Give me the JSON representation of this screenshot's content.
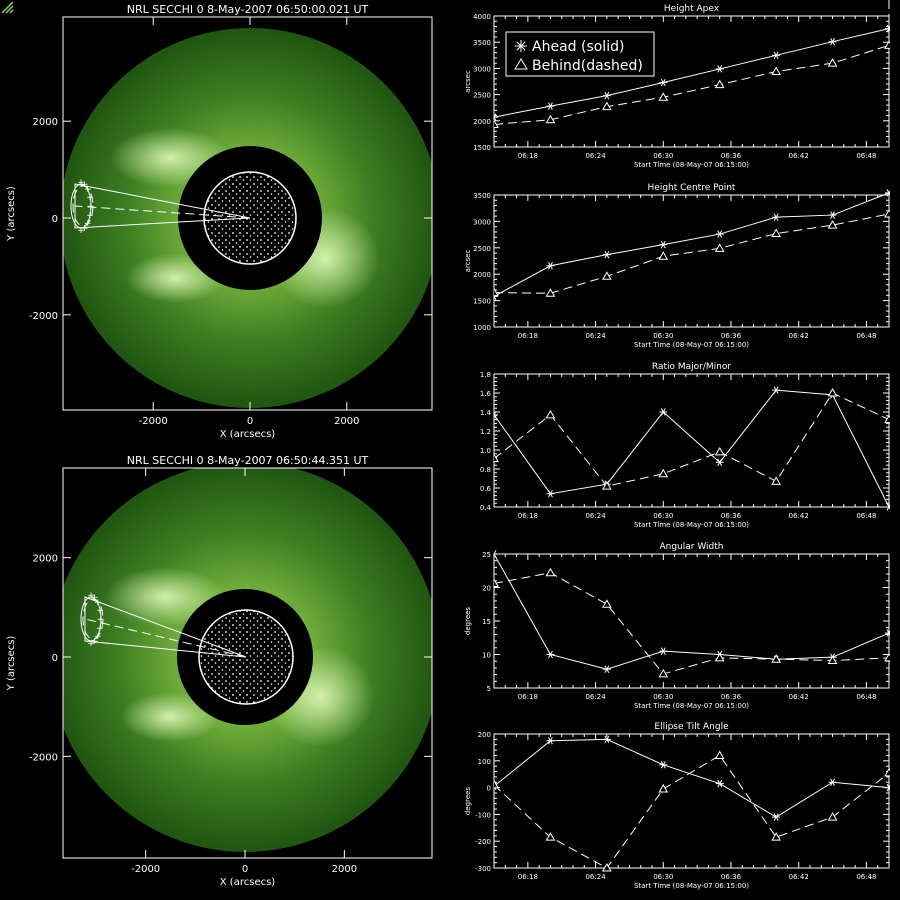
{
  "images": [
    {
      "title": "NRL SECCHI 0  8-May-2007 06:50:00.021 UT",
      "xlabel": "X (arcsecs)",
      "ylabel": "Y (arcsecs)",
      "xticks": [
        -2000,
        0,
        2000
      ],
      "yticks": [
        2000,
        0,
        -2000
      ]
    },
    {
      "title": "NRL SECCHI 0  8-May-2007 06:50:44.351 UT",
      "xlabel": "X (arcsecs)",
      "ylabel": "Y (arcsecs)",
      "xticks": [
        -2000,
        0,
        2000
      ],
      "yticks": [
        2000,
        0,
        -2000
      ]
    }
  ],
  "legend": {
    "ahead": "Ahead (solid)",
    "behind": "Behind(dashed)"
  },
  "colors": {
    "corona_inner": "#6fae3a",
    "corona_mid": "#3d7e22",
    "corona_outer": "#1f5510",
    "background": "#000000",
    "lines": "#ffffff"
  },
  "chart_data": [
    {
      "type": "line",
      "title": "Height Apex",
      "xlabel": "Start Time (08-May-07 06:15:00)",
      "ylabel": "arcsec",
      "x": [
        "06:15",
        "06:20",
        "06:25",
        "06:30",
        "06:35",
        "06:40",
        "06:45",
        "06:50"
      ],
      "xticks": [
        "06:18",
        "06:24",
        "06:30",
        "06:36",
        "06:42",
        "06:48"
      ],
      "yticks": [
        1500,
        2000,
        2500,
        3000,
        3500,
        4000
      ],
      "ylim": [
        1500,
        4000
      ],
      "series": [
        {
          "name": "Ahead (solid)",
          "values": [
            2070,
            2280,
            2480,
            2730,
            2990,
            3250,
            3510,
            3760
          ]
        },
        {
          "name": "Behind(dashed)",
          "values": [
            1930,
            2020,
            2270,
            2450,
            2690,
            2940,
            3100,
            3440
          ]
        }
      ]
    },
    {
      "type": "line",
      "title": "Height Centre Point",
      "xlabel": "Start Time (08-May-07 06:15:00)",
      "ylabel": "arcsec",
      "x": [
        "06:15",
        "06:20",
        "06:25",
        "06:30",
        "06:35",
        "06:40",
        "06:45",
        "06:50"
      ],
      "xticks": [
        "06:18",
        "06:24",
        "06:30",
        "06:36",
        "06:42",
        "06:48"
      ],
      "yticks": [
        1000,
        1500,
        2000,
        2500,
        3000,
        3500
      ],
      "ylim": [
        1000,
        3500
      ],
      "series": [
        {
          "name": "Ahead (solid)",
          "values": [
            1580,
            2160,
            2370,
            2560,
            2760,
            3080,
            3120,
            3540
          ]
        },
        {
          "name": "Behind(dashed)",
          "values": [
            1650,
            1640,
            1960,
            2340,
            2490,
            2770,
            2930,
            3140
          ]
        }
      ]
    },
    {
      "type": "line",
      "title": "Ratio Major/Minor",
      "xlabel": "Start Time (08-May-07 06:15:00)",
      "ylabel": "",
      "x": [
        "06:15",
        "06:20",
        "06:25",
        "06:30",
        "06:35",
        "06:40",
        "06:45",
        "06:50"
      ],
      "xticks": [
        "06:18",
        "06:24",
        "06:30",
        "06:36",
        "06:42",
        "06:48"
      ],
      "yticks": [
        0.4,
        0.6,
        0.8,
        1.0,
        1.2,
        1.4,
        1.6,
        1.8
      ],
      "ylim": [
        0.4,
        1.8
      ],
      "series": [
        {
          "name": "Ahead (solid)",
          "values": [
            1.37,
            0.54,
            0.64,
            1.4,
            0.87,
            1.63,
            1.58,
            0.4
          ]
        },
        {
          "name": "Behind(dashed)",
          "values": [
            0.91,
            1.37,
            0.62,
            0.75,
            0.98,
            0.67,
            1.6,
            1.32
          ]
        }
      ]
    },
    {
      "type": "line",
      "title": "Angular Width",
      "xlabel": "Start Time (08-May-07 06:15:00)",
      "ylabel": "degrees",
      "x": [
        "06:15",
        "06:20",
        "06:25",
        "06:30",
        "06:35",
        "06:40",
        "06:45",
        "06:50"
      ],
      "xticks": [
        "06:18",
        "06:24",
        "06:30",
        "06:36",
        "06:42",
        "06:48"
      ],
      "yticks": [
        5,
        10,
        15,
        20,
        25
      ],
      "ylim": [
        5,
        25
      ],
      "series": [
        {
          "name": "Ahead (solid)",
          "values": [
            25.0,
            10.0,
            7.8,
            10.5,
            10.0,
            9.3,
            9.6,
            13.2
          ]
        },
        {
          "name": "Behind(dashed)",
          "values": [
            20.6,
            22.2,
            17.5,
            7.1,
            9.5,
            9.3,
            9.1,
            9.5
          ]
        }
      ]
    },
    {
      "type": "line",
      "title": "Ellipse Tilt Angle",
      "xlabel": "Start Time (08-May-07 06:15:00)",
      "ylabel": "degrees",
      "x": [
        "06:15",
        "06:20",
        "06:25",
        "06:30",
        "06:35",
        "06:40",
        "06:45",
        "06:50"
      ],
      "xticks": [
        "06:18",
        "06:24",
        "06:30",
        "06:36",
        "06:42",
        "06:48"
      ],
      "yticks": [
        -300,
        -200,
        -100,
        0,
        100,
        200
      ],
      "ylim": [
        -300,
        200
      ],
      "series": [
        {
          "name": "Ahead (solid)",
          "values": [
            5,
            175,
            180,
            85,
            15,
            -110,
            20,
            0
          ]
        },
        {
          "name": "Behind(dashed)",
          "values": [
            10,
            -185,
            -300,
            -5,
            120,
            -185,
            -110,
            55
          ]
        }
      ]
    }
  ]
}
